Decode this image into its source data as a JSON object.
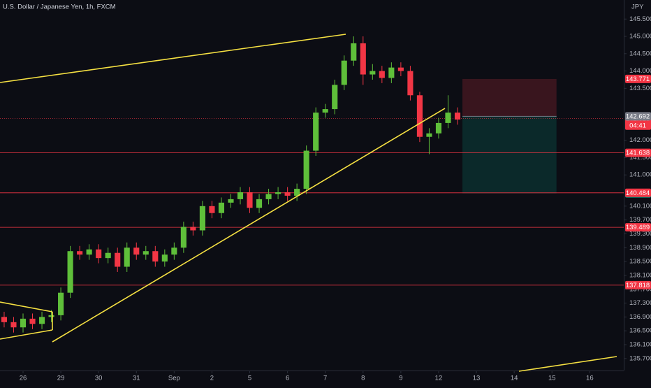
{
  "chart_data": {
    "type": "candlestick",
    "title": "U.S. Dollar / Japanese Yen, 1h, FXCM",
    "currency": "JPY",
    "up_color": "#5fbf3a",
    "down_color": "#f23645",
    "xlim": [
      -0.61,
      15.9
    ],
    "xticks": [
      {
        "value": 0,
        "label": "26"
      },
      {
        "value": 1,
        "label": "29"
      },
      {
        "value": 2,
        "label": "30"
      },
      {
        "value": 3,
        "label": "31"
      },
      {
        "value": 4,
        "label": "Sep"
      },
      {
        "value": 5,
        "label": "2"
      },
      {
        "value": 6,
        "label": "5"
      },
      {
        "value": 7,
        "label": "6"
      },
      {
        "value": 8,
        "label": "7"
      },
      {
        "value": 9,
        "label": "8"
      },
      {
        "value": 10,
        "label": "9"
      },
      {
        "value": 11,
        "label": "12"
      },
      {
        "value": 12,
        "label": "13"
      },
      {
        "value": 13,
        "label": "14"
      },
      {
        "value": 14,
        "label": "15"
      },
      {
        "value": 15,
        "label": "16"
      }
    ],
    "ylim": [
      134.95,
      146.05
    ],
    "yticks": [
      {
        "value": 145.5,
        "label": "145.500"
      },
      {
        "value": 145,
        "label": "145.000"
      },
      {
        "value": 144.5,
        "label": "144.500"
      },
      {
        "value": 144,
        "label": "144.000"
      },
      {
        "value": 143.5,
        "label": "143.500"
      },
      {
        "value": 142,
        "label": "142.000"
      },
      {
        "value": 141.5,
        "label": "141.500"
      },
      {
        "value": 141,
        "label": "141.000"
      },
      {
        "value": 140.1,
        "label": "140.100"
      },
      {
        "value": 139.7,
        "label": "139.700"
      },
      {
        "value": 139.3,
        "label": "139.300"
      },
      {
        "value": 138.9,
        "label": "138.900"
      },
      {
        "value": 138.5,
        "label": "138.500"
      },
      {
        "value": 138.1,
        "label": "138.100"
      },
      {
        "value": 137.7,
        "label": "137.700"
      },
      {
        "value": 137.3,
        "label": "137.300"
      },
      {
        "value": 136.9,
        "label": "136.900"
      },
      {
        "value": 136.5,
        "label": "136.500"
      },
      {
        "value": 136.1,
        "label": "136.100"
      },
      {
        "value": 135.7,
        "label": "135.700"
      }
    ],
    "candles": {
      "x": [
        -0.5,
        -0.25,
        0,
        0.25,
        0.5,
        0.75,
        1,
        1.25,
        1.5,
        1.75,
        2,
        2.25,
        2.5,
        2.75,
        3,
        3.25,
        3.5,
        3.75,
        4,
        4.25,
        4.5,
        4.75,
        5,
        5.25,
        5.5,
        5.75,
        6,
        6.25,
        6.5,
        6.75,
        7,
        7.25,
        7.5,
        7.75,
        8,
        8.25,
        8.5,
        8.75,
        9,
        9.25,
        9.5,
        9.75,
        10,
        10.25,
        10.5,
        10.75,
        11,
        11.25,
        11.5
      ],
      "open": [
        136.9,
        136.75,
        136.6,
        136.85,
        136.7,
        136.9,
        136.95,
        137.6,
        138.8,
        138.7,
        138.85,
        138.6,
        138.75,
        138.35,
        138.9,
        138.7,
        138.8,
        138.5,
        138.7,
        138.9,
        139.5,
        139.4,
        140.1,
        139.9,
        140.2,
        140.3,
        140.5,
        140.05,
        140.3,
        140.45,
        140.5,
        140.4,
        140.6,
        141.7,
        142.8,
        142.9,
        143.6,
        144.3,
        144.8,
        143.9,
        144.0,
        143.8,
        144.1,
        144.0,
        143.3,
        142.1,
        142.2,
        142.5,
        142.8
      ],
      "high": [
        137.05,
        136.9,
        137.0,
        137.0,
        137.05,
        137.1,
        137.75,
        138.95,
        138.95,
        139.0,
        139.0,
        138.9,
        138.9,
        139.05,
        139.05,
        138.95,
        138.95,
        138.85,
        139.05,
        139.65,
        139.65,
        140.25,
        140.25,
        140.35,
        140.45,
        140.65,
        140.65,
        140.45,
        140.6,
        140.65,
        140.65,
        140.75,
        141.85,
        142.95,
        143.05,
        143.75,
        144.45,
        145.0,
        145.0,
        144.2,
        144.15,
        144.25,
        144.25,
        144.15,
        143.4,
        142.35,
        142.65,
        143.3,
        142.95
      ],
      "low": [
        136.6,
        136.45,
        136.45,
        136.55,
        136.55,
        136.75,
        136.8,
        137.45,
        138.55,
        138.55,
        138.45,
        138.45,
        138.2,
        138.2,
        138.55,
        138.55,
        138.35,
        138.35,
        138.55,
        138.75,
        139.25,
        139.25,
        139.75,
        139.75,
        140.05,
        140.15,
        139.9,
        139.9,
        140.15,
        140.3,
        140.25,
        140.25,
        140.45,
        141.55,
        142.65,
        142.75,
        143.45,
        144.15,
        143.6,
        143.75,
        143.65,
        143.65,
        143.85,
        143.15,
        141.95,
        141.6,
        142.05,
        142.35,
        142.45
      ],
      "close": [
        136.75,
        136.6,
        136.85,
        136.7,
        136.9,
        136.95,
        137.6,
        138.8,
        138.7,
        138.85,
        138.6,
        138.75,
        138.35,
        138.9,
        138.7,
        138.8,
        138.5,
        138.7,
        138.9,
        139.5,
        139.4,
        140.1,
        139.9,
        140.2,
        140.3,
        140.5,
        140.05,
        140.3,
        140.45,
        140.5,
        140.4,
        140.6,
        141.7,
        142.8,
        142.9,
        143.6,
        144.3,
        144.8,
        143.9,
        144.0,
        143.8,
        144.1,
        144.0,
        143.3,
        142.1,
        142.2,
        142.5,
        142.8,
        142.6
      ]
    },
    "levels": [
      141.638,
      140.484,
      139.489,
      137.818
    ],
    "position": {
      "stop": 143.771,
      "entry": 142.692,
      "target": 140.466,
      "from": 11.63,
      "to": 14.12
    },
    "last": {
      "value": 142.625,
      "countdown": "04:41"
    }
  }
}
